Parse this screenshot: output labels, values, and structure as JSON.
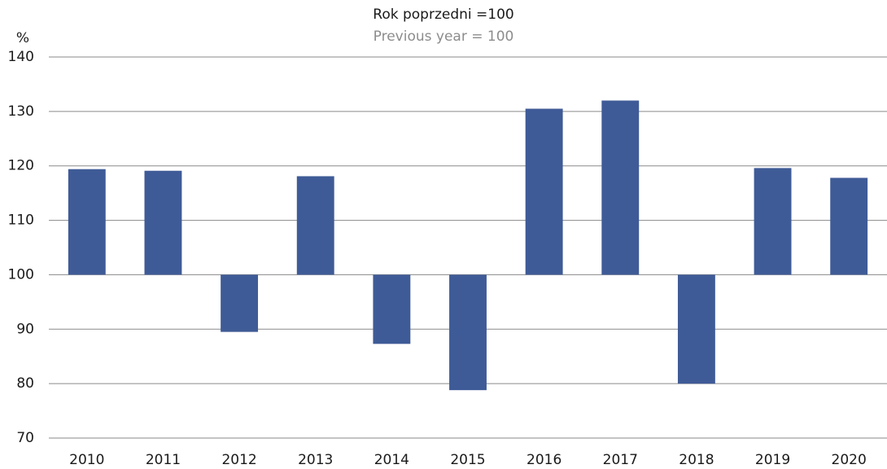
{
  "chart_data": {
    "type": "bar",
    "title": "Rok poprzedni =100",
    "subtitle": "Previous year = 100",
    "y_label": "%",
    "categories": [
      "2010",
      "2011",
      "2012",
      "2013",
      "2014",
      "2015",
      "2016",
      "2017",
      "2018",
      "2019",
      "2020"
    ],
    "values": [
      119.4,
      119.1,
      89.5,
      118.1,
      87.3,
      78.8,
      130.5,
      132,
      80,
      119.6,
      117.8
    ],
    "color": "#3f5b97",
    "baseline": 100,
    "ylim": [
      70,
      140
    ],
    "yticks": [
      70,
      80,
      90,
      100,
      110,
      120,
      130,
      140
    ],
    "grid": true
  }
}
